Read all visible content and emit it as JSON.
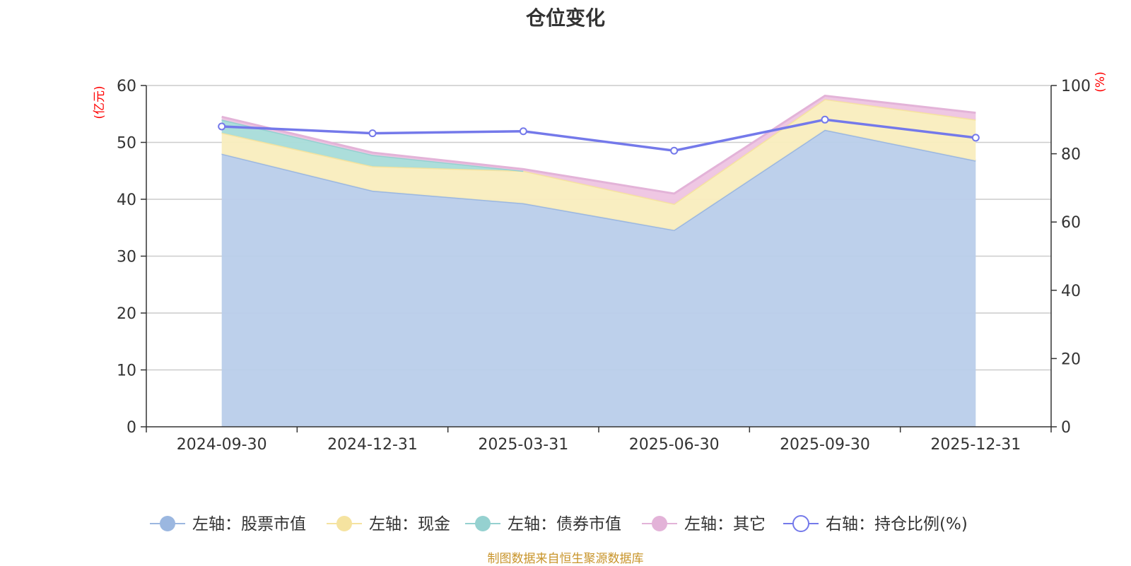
{
  "chart_data": {
    "type": "area",
    "title": "仓位变化",
    "categories": [
      "2024-09-30",
      "2024-12-31",
      "2025-03-31",
      "2025-06-30",
      "2025-09-30",
      "2025-12-31"
    ],
    "left_axis": {
      "unit_label": "(亿元)",
      "ylim": [
        0,
        60
      ],
      "ticks": [
        0,
        10,
        20,
        30,
        40,
        50,
        60
      ]
    },
    "right_axis": {
      "unit_label": "(%)",
      "ylim": [
        0,
        100
      ],
      "ticks": [
        0,
        20,
        40,
        60,
        80,
        100
      ]
    },
    "stacked_series": [
      {
        "name": "左轴：股票市值",
        "color": "#9bb7e0",
        "fill": "#b9cdea",
        "values": [
          48.0,
          41.5,
          39.3,
          34.6,
          52.2,
          46.8
        ]
      },
      {
        "name": "左轴：现金",
        "color": "#f5e3a0",
        "fill": "#f9edbe",
        "values": [
          3.7,
          4.3,
          5.7,
          4.6,
          5.4,
          7.2
        ]
      },
      {
        "name": "左轴：债券市值",
        "color": "#95d1d0",
        "fill": "#a8dcd9",
        "values": [
          2.3,
          2.0,
          0,
          0,
          0,
          0
        ]
      },
      {
        "name": "左轴：其它",
        "color": "#e3b3d8",
        "fill": "#eec4e2",
        "values": [
          0.5,
          0.4,
          0.3,
          1.8,
          0.6,
          1.2
        ]
      }
    ],
    "line_series": {
      "name": "右轴：持仓比例(%)",
      "color": "#7479ea",
      "values": [
        88.0,
        86.0,
        86.6,
        80.9,
        90.0,
        84.7
      ]
    },
    "grid": true,
    "legend_position": "bottom"
  },
  "source_note": "制图数据来自恒生聚源数据库"
}
